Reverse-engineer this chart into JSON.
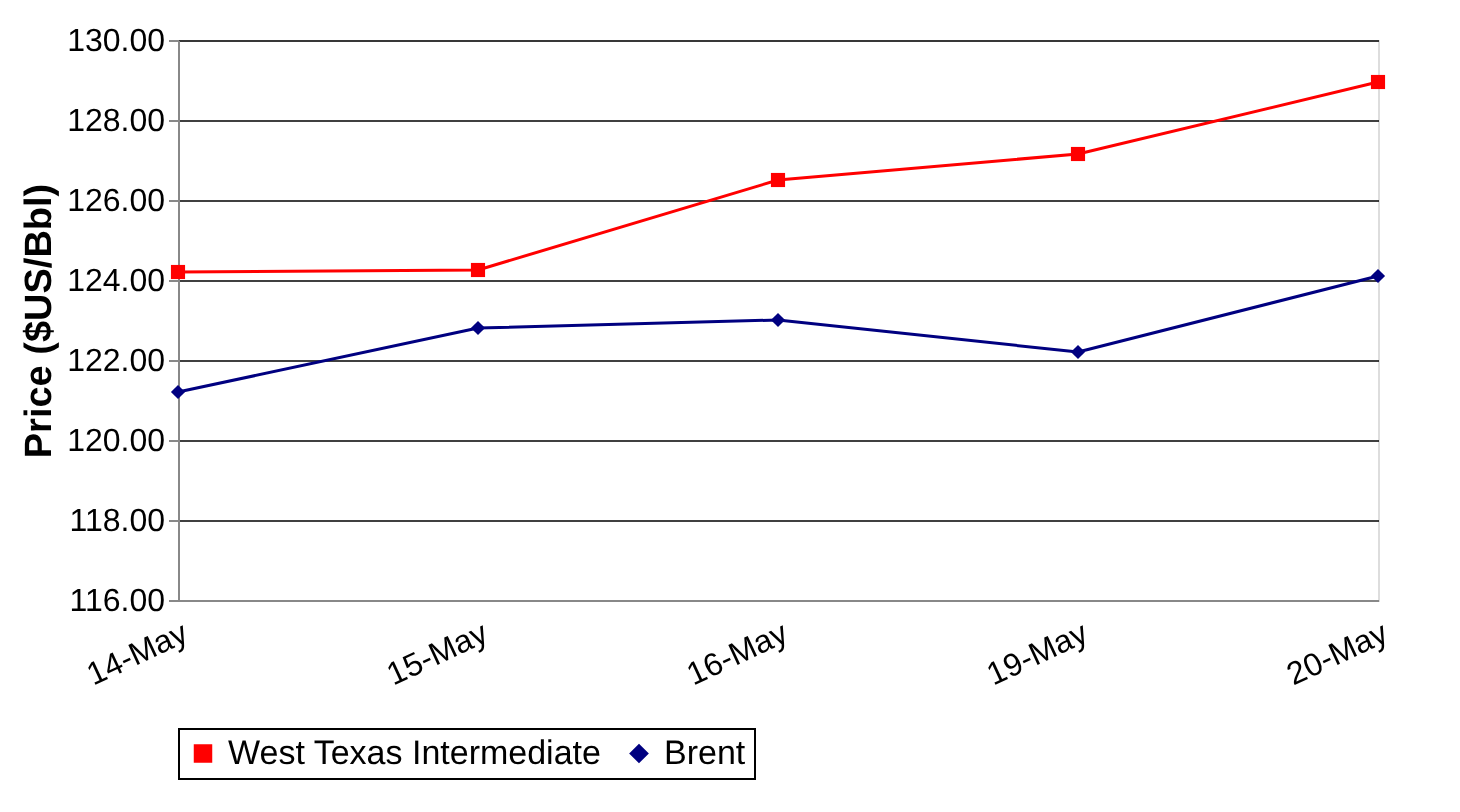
{
  "chart_data": {
    "type": "line",
    "ylabel": "Price ($US/Bbl)",
    "categories": [
      "14-May",
      "15-May",
      "16-May",
      "19-May",
      "20-May"
    ],
    "series": [
      {
        "name": "West Texas Intermediate",
        "color": "#ff0000",
        "marker": "square",
        "values": [
          124.2,
          124.25,
          126.5,
          127.15,
          128.95
        ]
      },
      {
        "name": "Brent",
        "color": "#000080",
        "marker": "diamond",
        "values": [
          121.2,
          122.8,
          123.0,
          122.2,
          124.1
        ]
      }
    ],
    "ylim": [
      116,
      130
    ],
    "yticks": [
      {
        "value": 116,
        "label": "116.00"
      },
      {
        "value": 118,
        "label": "118.00"
      },
      {
        "value": 120,
        "label": "120.00"
      },
      {
        "value": 122,
        "label": "122.00"
      },
      {
        "value": 124,
        "label": "124.00"
      },
      {
        "value": 126,
        "label": "126.00"
      },
      {
        "value": 128,
        "label": "128.00"
      },
      {
        "value": 130,
        "label": "130.00"
      }
    ],
    "grid": "y",
    "legend": "bottom",
    "line_style": "solid"
  }
}
